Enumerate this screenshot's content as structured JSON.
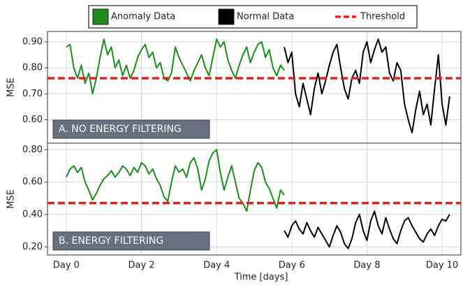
{
  "chart_data": [
    {
      "type": "line",
      "ylabel": "MSE",
      "annotation": "A. NO ENERGY FILTERING",
      "xlim": [
        -0.5,
        10.5
      ],
      "xticks": [
        {
          "value": 0,
          "label": "Day 0"
        },
        {
          "value": 2,
          "label": "Day 2"
        },
        {
          "value": 4,
          "label": "Day 4"
        },
        {
          "value": 6,
          "label": "Day 6"
        },
        {
          "value": 8,
          "label": "Day 8"
        },
        {
          "value": 10,
          "label": "Day 10"
        }
      ],
      "ylim": [
        0.51,
        0.94
      ],
      "yticks": [
        {
          "value": 0.6,
          "label": "0.60"
        },
        {
          "value": 0.7,
          "label": "0.70"
        },
        {
          "value": 0.8,
          "label": "0.80"
        },
        {
          "value": 0.9,
          "label": "0.90"
        }
      ],
      "grid": true,
      "threshold": {
        "name": "Threshold",
        "value": 0.76,
        "color": "#e3201b"
      },
      "series": [
        {
          "name": "Anomaly Data",
          "color": "#1f8a1f",
          "x": [
            0,
            0.1,
            0.2,
            0.3,
            0.4,
            0.5,
            0.6,
            0.7,
            0.8,
            0.9,
            1,
            1.1,
            1.2,
            1.3,
            1.4,
            1.5,
            1.6,
            1.7,
            1.8,
            1.9,
            2,
            2.1,
            2.2,
            2.3,
            2.4,
            2.5,
            2.6,
            2.7,
            2.8,
            2.9,
            3,
            3.1,
            3.2,
            3.3,
            3.4,
            3.5,
            3.6,
            3.7,
            3.8,
            3.9,
            4,
            4.1,
            4.2,
            4.3,
            4.4,
            4.5,
            4.6,
            4.7,
            4.8,
            4.9,
            5,
            5.1,
            5.2,
            5.3,
            5.4,
            5.5,
            5.6,
            5.7,
            5.8
          ],
          "values": [
            0.88,
            0.89,
            0.8,
            0.76,
            0.81,
            0.74,
            0.78,
            0.7,
            0.76,
            0.84,
            0.91,
            0.85,
            0.88,
            0.8,
            0.83,
            0.77,
            0.81,
            0.76,
            0.79,
            0.84,
            0.87,
            0.89,
            0.84,
            0.86,
            0.8,
            0.82,
            0.76,
            0.75,
            0.78,
            0.88,
            0.84,
            0.81,
            0.78,
            0.75,
            0.79,
            0.82,
            0.85,
            0.8,
            0.77,
            0.84,
            0.91,
            0.88,
            0.9,
            0.83,
            0.79,
            0.76,
            0.81,
            0.85,
            0.88,
            0.82,
            0.86,
            0.89,
            0.9,
            0.84,
            0.87,
            0.8,
            0.77,
            0.81,
            0.79
          ]
        },
        {
          "name": "Normal Data",
          "color": "#000000",
          "x": [
            5.8,
            5.9,
            6,
            6.1,
            6.2,
            6.3,
            6.4,
            6.5,
            6.6,
            6.7,
            6.8,
            6.9,
            7,
            7.1,
            7.2,
            7.3,
            7.4,
            7.5,
            7.6,
            7.7,
            7.8,
            7.9,
            8,
            8.1,
            8.2,
            8.3,
            8.4,
            8.5,
            8.6,
            8.7,
            8.8,
            8.9,
            9,
            9.1,
            9.2,
            9.3,
            9.4,
            9.5,
            9.6,
            9.7,
            9.8,
            9.9,
            10,
            10.1,
            10.2
          ],
          "values": [
            0.88,
            0.82,
            0.86,
            0.7,
            0.65,
            0.74,
            0.68,
            0.62,
            0.72,
            0.78,
            0.7,
            0.75,
            0.81,
            0.86,
            0.89,
            0.8,
            0.72,
            0.68,
            0.76,
            0.79,
            0.74,
            0.86,
            0.9,
            0.82,
            0.87,
            0.91,
            0.86,
            0.88,
            0.78,
            0.75,
            0.82,
            0.79,
            0.66,
            0.6,
            0.55,
            0.64,
            0.71,
            0.62,
            0.66,
            0.58,
            0.72,
            0.85,
            0.66,
            0.58,
            0.69
          ]
        }
      ]
    },
    {
      "type": "line",
      "ylabel": "MSE",
      "xlabel": "Time [days]",
      "annotation": "B. ENERGY FILTERING",
      "xlim": [
        -0.5,
        10.5
      ],
      "xticks": [
        {
          "value": 0,
          "label": "Day 0"
        },
        {
          "value": 2,
          "label": "Day 2"
        },
        {
          "value": 4,
          "label": "Day 4"
        },
        {
          "value": 6,
          "label": "Day 6"
        },
        {
          "value": 8,
          "label": "Day 8"
        },
        {
          "value": 10,
          "label": "Day 10"
        }
      ],
      "ylim": [
        0.15,
        0.84
      ],
      "yticks": [
        {
          "value": 0.2,
          "label": "0.20"
        },
        {
          "value": 0.4,
          "label": "0.40"
        },
        {
          "value": 0.6,
          "label": "0.60"
        },
        {
          "value": 0.8,
          "label": "0.80"
        }
      ],
      "grid": true,
      "threshold": {
        "value": 0.47,
        "color": "#e3201b"
      },
      "series": [
        {
          "color": "#1f8a1f",
          "x": [
            0,
            0.1,
            0.2,
            0.3,
            0.4,
            0.5,
            0.6,
            0.7,
            0.8,
            0.9,
            1,
            1.1,
            1.2,
            1.3,
            1.4,
            1.5,
            1.6,
            1.7,
            1.8,
            1.9,
            2,
            2.1,
            2.2,
            2.3,
            2.4,
            2.5,
            2.6,
            2.7,
            2.8,
            2.9,
            3,
            3.1,
            3.2,
            3.3,
            3.4,
            3.5,
            3.6,
            3.7,
            3.8,
            3.9,
            4,
            4.1,
            4.2,
            4.3,
            4.4,
            4.5,
            4.6,
            4.7,
            4.8,
            4.9,
            5,
            5.1,
            5.2,
            5.3,
            5.4,
            5.5,
            5.6,
            5.7,
            5.8
          ],
          "values": [
            0.63,
            0.68,
            0.7,
            0.66,
            0.69,
            0.6,
            0.55,
            0.49,
            0.53,
            0.58,
            0.62,
            0.64,
            0.67,
            0.63,
            0.66,
            0.7,
            0.68,
            0.64,
            0.69,
            0.66,
            0.72,
            0.7,
            0.65,
            0.68,
            0.62,
            0.58,
            0.51,
            0.48,
            0.6,
            0.7,
            0.66,
            0.68,
            0.63,
            0.72,
            0.75,
            0.68,
            0.55,
            0.62,
            0.73,
            0.78,
            0.8,
            0.66,
            0.55,
            0.63,
            0.7,
            0.6,
            0.5,
            0.47,
            0.42,
            0.55,
            0.67,
            0.72,
            0.69,
            0.6,
            0.56,
            0.5,
            0.44,
            0.55,
            0.52
          ]
        },
        {
          "color": "#000000",
          "x": [
            5.8,
            5.9,
            6,
            6.1,
            6.2,
            6.3,
            6.4,
            6.5,
            6.6,
            6.7,
            6.8,
            6.9,
            7,
            7.1,
            7.2,
            7.3,
            7.4,
            7.5,
            7.6,
            7.7,
            7.8,
            7.9,
            8,
            8.1,
            8.2,
            8.3,
            8.4,
            8.5,
            8.6,
            8.7,
            8.8,
            8.9,
            9,
            9.1,
            9.2,
            9.3,
            9.4,
            9.5,
            9.6,
            9.7,
            9.8,
            9.9,
            10,
            10.1,
            10.2
          ],
          "values": [
            0.3,
            0.26,
            0.33,
            0.36,
            0.31,
            0.28,
            0.35,
            0.3,
            0.26,
            0.32,
            0.28,
            0.24,
            0.2,
            0.27,
            0.33,
            0.29,
            0.22,
            0.19,
            0.25,
            0.35,
            0.4,
            0.3,
            0.24,
            0.36,
            0.42,
            0.33,
            0.28,
            0.38,
            0.31,
            0.25,
            0.22,
            0.3,
            0.36,
            0.38,
            0.33,
            0.29,
            0.25,
            0.23,
            0.28,
            0.31,
            0.27,
            0.33,
            0.37,
            0.36,
            0.4
          ]
        }
      ]
    }
  ]
}
